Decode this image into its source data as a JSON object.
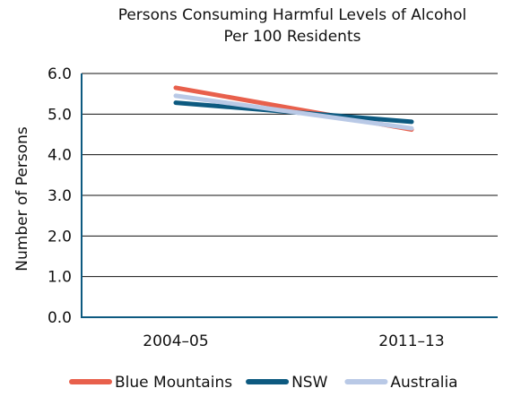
{
  "chart_data": {
    "type": "line",
    "title_lines": [
      "Persons Consuming Harmful Levels of Alcohol",
      "Per 100 Residents"
    ],
    "xlabel": "",
    "ylabel": "Number of Persons",
    "categories": [
      "2004–05",
      "2011–13"
    ],
    "ylim": [
      0,
      6
    ],
    "yticks": [
      "0.0",
      "1.0",
      "2.0",
      "3.0",
      "4.0",
      "5.0",
      "6.0"
    ],
    "grid": true,
    "legend_position": "bottom",
    "series": [
      {
        "name": "Blue Mountains",
        "values": [
          5.65,
          4.62
        ],
        "color": "#e8604c"
      },
      {
        "name": "NSW",
        "values": [
          5.28,
          4.81
        ],
        "color": "#0d5a80"
      },
      {
        "name": "Australia",
        "values": [
          5.45,
          4.65
        ],
        "color": "#b9c9e6"
      }
    ]
  }
}
